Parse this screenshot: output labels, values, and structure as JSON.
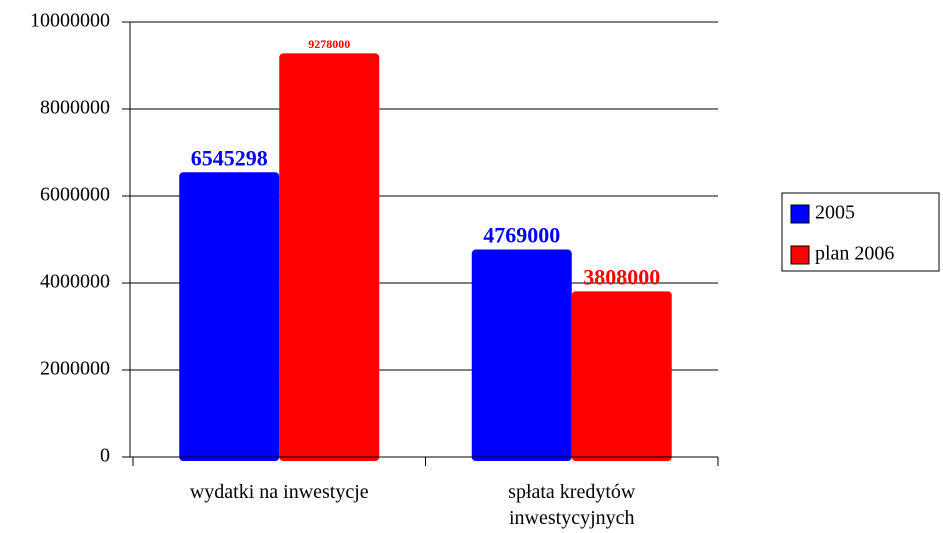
{
  "chart_data": {
    "type": "bar",
    "categories": [
      "wydatki na inwestycje",
      "spłata kredytów inwestycyjnych"
    ],
    "series": [
      {
        "name": "2005",
        "color": "#0000ff",
        "values": [
          6545298,
          4769000
        ]
      },
      {
        "name": "plan 2006",
        "color": "#ff0000",
        "values": [
          9278000,
          3808000
        ]
      }
    ],
    "ylim": [
      0,
      10000000
    ],
    "yticks": [
      0,
      2000000,
      4000000,
      6000000,
      8000000,
      10000000
    ],
    "grid": true,
    "legend": "right"
  }
}
